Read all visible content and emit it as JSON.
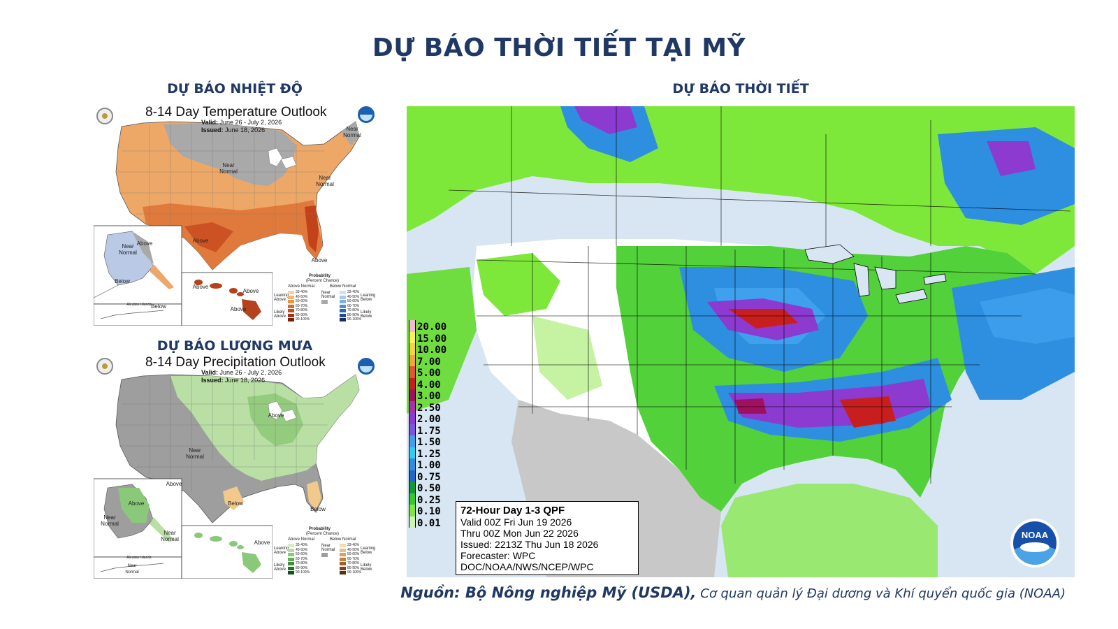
{
  "page": {
    "title": "DỰ BÁO THỜI TIẾT TẠI MỸ",
    "source_prefix": "Nguồn: Bộ Nông nghiệp Mỹ (USDA),",
    "source_rest": " Cơ quan quản lý Đại dương và Khí quyển quốc gia (NOAA)"
  },
  "temperature": {
    "heading": "DỰ BÁO NHIỆT ĐỘ",
    "map_title": "8-14 Day Temperature Outlook",
    "valid_label": "Valid:",
    "valid": "June 26 - July 2, 2026",
    "issued_label": "Issued:",
    "issued": "June 18, 2026",
    "labels": {
      "near_normal_ne": "Near Normal",
      "near_normal_c": "Near Normal",
      "above_tx": "Above",
      "above_fl": "Above",
      "ak_near": "Near Normal",
      "ak_above": "Above",
      "ak_below": "Below",
      "hi_above1": "Above",
      "hi_above2": "Above",
      "hi_above3": "Above",
      "aleutian": "Aleutian Islands",
      "ak_below2": "Below"
    },
    "legend": {
      "heading": "Probability",
      "sub": "(Percent Chance)",
      "above": "Above Normal",
      "below": "Below Normal",
      "near": "Near Normal",
      "leaning_above": "Leaning Above",
      "likely_above": "Likely Above",
      "leaning_below": "Leaning Below",
      "likely_below": "Likely Below",
      "ranges": [
        "33-40%",
        "40-50%",
        "50-60%",
        "60-70%",
        "70-80%",
        "80-90%",
        "90-100%"
      ],
      "above_colors": [
        "#f7d3a3",
        "#f2b572",
        "#ea9346",
        "#dd6a2a",
        "#c74a1c",
        "#a53414",
        "#7a1e0c"
      ],
      "below_colors": [
        "#cfe0f3",
        "#a9c9eb",
        "#7fb0e0",
        "#4e8fd0",
        "#2d68b5",
        "#23488f",
        "#1c2d66"
      ]
    }
  },
  "precipitation": {
    "heading": "DỰ BÁO LƯỢNG MƯA",
    "map_title": "8-14 Day Precipitation Outlook",
    "valid_label": "Valid:",
    "valid": "June 26 - July 2, 2026",
    "issued_label": "Issued:",
    "issued": "June 18, 2026",
    "labels": {
      "above_gl": "Above",
      "near_normal_w": "Near Normal",
      "below_tx": "Below",
      "below_fl": "Below",
      "ak_above": "Above",
      "ak_above2": "Above",
      "ak_near": "Near Normal",
      "ak_near2": "Near Normal",
      "ak_near3": "Near Normal",
      "hi_above": "Above",
      "aleutian": "Aleutian Islands"
    },
    "legend": {
      "heading": "Probability",
      "sub": "(Percent Chance)",
      "above": "Above Normal",
      "below": "Below Normal",
      "near": "Near Normal",
      "leaning_above": "Leaning Above",
      "likely_above": "Likely Above",
      "leaning_below": "Leaning Below",
      "likely_below": "Likely Below",
      "ranges": [
        "33-40%",
        "40-50%",
        "50-60%",
        "60-70%",
        "70-80%",
        "80-90%",
        "90-100%"
      ],
      "above_colors": [
        "#d6ecc9",
        "#b4dda0",
        "#8bc97a",
        "#5fb055",
        "#3a9138",
        "#22722a",
        "#12501c"
      ],
      "below_colors": [
        "#f3dcb0",
        "#e8c088",
        "#d9a060",
        "#c67e3c",
        "#a75e26",
        "#834318",
        "#5c2d0e"
      ]
    }
  },
  "qpf": {
    "heading": "DỰ BÁO THỜI TIẾT",
    "box_title": "72-Hour Day 1-3 QPF",
    "valid": "Valid 00Z Fri Jun 19 2026",
    "thru": "Thru 00Z Mon Jun 22 2026",
    "issued": "Issued: 2213Z Thu Jun 18 2026",
    "forecaster": "Forecaster: WPC",
    "org": "DOC/NOAA/NWS/NCEP/WPC",
    "noaa_logo": "NOAA",
    "scale": [
      {
        "label": "20.00",
        "color": "#f4b8d8"
      },
      {
        "label": "15.00",
        "color": "#fff05a"
      },
      {
        "label": "10.00",
        "color": "#f6d440"
      },
      {
        "label": "7.00",
        "color": "#f1a63a"
      },
      {
        "label": "5.00",
        "color": "#e2552e"
      },
      {
        "label": "4.00",
        "color": "#c81e1e"
      },
      {
        "label": "3.00",
        "color": "#a01060"
      },
      {
        "label": "2.50",
        "color": "#b02cae"
      },
      {
        "label": "2.00",
        "color": "#8c3ad0"
      },
      {
        "label": "1.75",
        "color": "#7a55e0"
      },
      {
        "label": "1.50",
        "color": "#3fa0ee"
      },
      {
        "label": "1.25",
        "color": "#2cd0f0"
      },
      {
        "label": "1.00",
        "color": "#2e8fe0"
      },
      {
        "label": "0.75",
        "color": "#1f68c8"
      },
      {
        "label": "0.50",
        "color": "#0f9a3a"
      },
      {
        "label": "0.25",
        "color": "#2ecc2e"
      },
      {
        "label": "0.10",
        "color": "#7ee83a"
      },
      {
        "label": "0.01",
        "color": "#c8f5b0"
      }
    ]
  }
}
